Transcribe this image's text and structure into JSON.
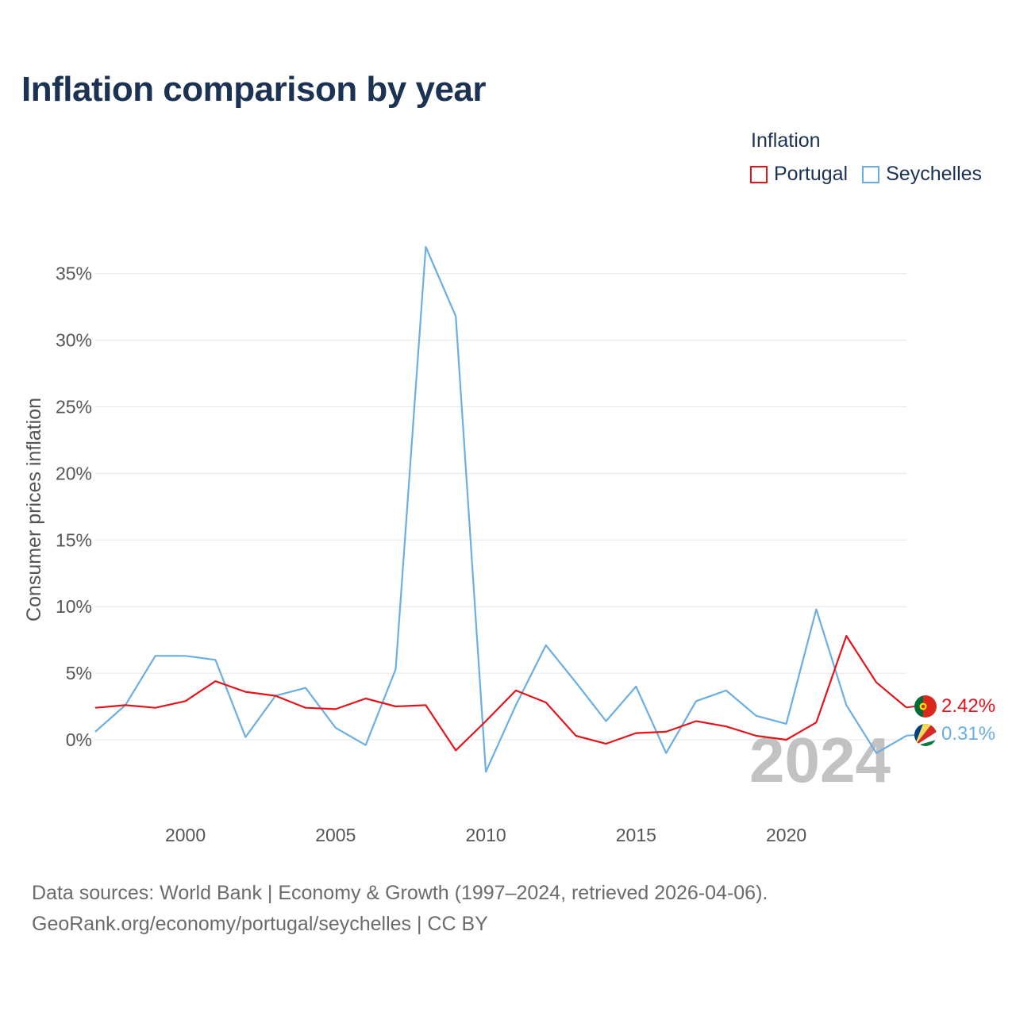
{
  "title": "Inflation comparison by year",
  "legend": {
    "title": "Inflation",
    "items": [
      {
        "label": "Portugal",
        "color": "#e3141b"
      },
      {
        "label": "Seychelles",
        "color": "#6aaee4"
      }
    ]
  },
  "chart_data": {
    "type": "line",
    "title": "Inflation comparison by year",
    "xlabel": "",
    "ylabel": "Consumer prices inflation",
    "x": [
      1997,
      1998,
      1999,
      2000,
      2001,
      2002,
      2003,
      2004,
      2005,
      2006,
      2007,
      2008,
      2009,
      2010,
      2011,
      2012,
      2013,
      2014,
      2015,
      2016,
      2017,
      2018,
      2019,
      2020,
      2021,
      2022,
      2023,
      2024
    ],
    "series": [
      {
        "name": "Portugal",
        "color": "#e3141b",
        "values": [
          2.4,
          2.6,
          2.4,
          2.9,
          4.4,
          3.6,
          3.3,
          2.4,
          2.3,
          3.1,
          2.5,
          2.6,
          -0.8,
          1.4,
          3.7,
          2.8,
          0.3,
          -0.3,
          0.5,
          0.6,
          1.4,
          1.0,
          0.3,
          0.0,
          1.3,
          7.8,
          4.3,
          2.42
        ]
      },
      {
        "name": "Seychelles",
        "color": "#6aaee4",
        "values": [
          0.6,
          2.6,
          6.3,
          6.3,
          6.0,
          0.2,
          3.3,
          3.9,
          0.9,
          -0.4,
          5.3,
          37.0,
          31.8,
          -2.4,
          2.6,
          7.1,
          4.3,
          1.4,
          4.0,
          -1.0,
          2.9,
          3.7,
          1.8,
          1.2,
          9.8,
          2.6,
          -1.0,
          0.31
        ]
      }
    ],
    "xlim": [
      1997,
      2024
    ],
    "ylim": [
      -5,
      37
    ],
    "x_ticks": [
      2000,
      2005,
      2010,
      2015,
      2020
    ],
    "x_tick_labels": [
      "2000",
      "2005",
      "2010",
      "2015",
      "2020"
    ],
    "y_ticks": [
      0,
      5,
      10,
      15,
      20,
      25,
      30,
      35
    ],
    "y_tick_labels": [
      "0%",
      "5%",
      "10%",
      "15%",
      "20%",
      "25%",
      "30%",
      "35%"
    ],
    "grid": true,
    "end_labels": [
      "2.42%",
      "0.31%"
    ],
    "current_year": "2024"
  },
  "footer": {
    "line1": "Data sources: World Bank | Economy & Growth (1997–2024, retrieved 2026-04-06).",
    "line2": "GeoRank.org/economy/portugal/seychelles | CC BY"
  }
}
